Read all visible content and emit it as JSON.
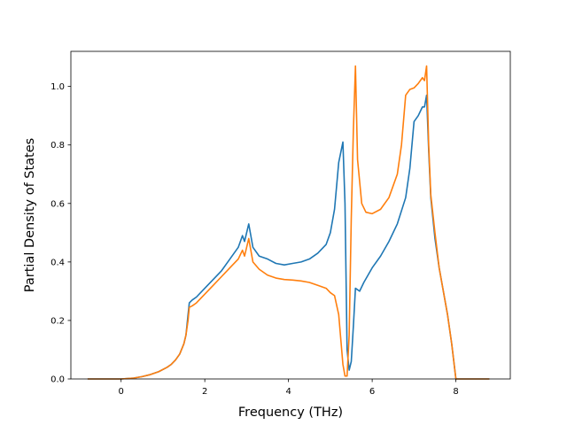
{
  "chart_data": {
    "type": "line",
    "title": "",
    "xlabel": "Frequency (THz)",
    "ylabel": "Partial Density of States",
    "xlim": [
      -1.2,
      9.3
    ],
    "ylim": [
      0.0,
      1.12
    ],
    "xticks": [
      0,
      2,
      4,
      6,
      8
    ],
    "yticks": [
      0.0,
      0.2,
      0.4,
      0.6,
      0.8,
      1.0
    ],
    "xtick_labels": [
      "0",
      "2",
      "4",
      "6",
      "8"
    ],
    "ytick_labels": [
      "0.0",
      "0.2",
      "0.4",
      "0.6",
      "0.8",
      "1.0"
    ],
    "grid": false,
    "legend": "none",
    "series": [
      {
        "color": "#1f77b4",
        "points": [
          [
            -0.8,
            0.0
          ],
          [
            0.0,
            0.0
          ],
          [
            0.3,
            0.003
          ],
          [
            0.5,
            0.008
          ],
          [
            0.7,
            0.015
          ],
          [
            0.9,
            0.025
          ],
          [
            1.1,
            0.04
          ],
          [
            1.2,
            0.05
          ],
          [
            1.3,
            0.065
          ],
          [
            1.4,
            0.085
          ],
          [
            1.5,
            0.12
          ],
          [
            1.55,
            0.15
          ],
          [
            1.6,
            0.22
          ],
          [
            1.63,
            0.26
          ],
          [
            1.7,
            0.27
          ],
          [
            1.8,
            0.28
          ],
          [
            2.0,
            0.31
          ],
          [
            2.2,
            0.34
          ],
          [
            2.4,
            0.37
          ],
          [
            2.6,
            0.41
          ],
          [
            2.8,
            0.45
          ],
          [
            2.9,
            0.49
          ],
          [
            2.95,
            0.47
          ],
          [
            3.05,
            0.53
          ],
          [
            3.15,
            0.45
          ],
          [
            3.3,
            0.42
          ],
          [
            3.5,
            0.41
          ],
          [
            3.7,
            0.395
          ],
          [
            3.9,
            0.39
          ],
          [
            4.1,
            0.395
          ],
          [
            4.3,
            0.4
          ],
          [
            4.5,
            0.41
          ],
          [
            4.7,
            0.43
          ],
          [
            4.9,
            0.46
          ],
          [
            5.0,
            0.5
          ],
          [
            5.1,
            0.58
          ],
          [
            5.2,
            0.74
          ],
          [
            5.3,
            0.81
          ],
          [
            5.35,
            0.6
          ],
          [
            5.4,
            0.1
          ],
          [
            5.45,
            0.03
          ],
          [
            5.5,
            0.06
          ],
          [
            5.55,
            0.18
          ],
          [
            5.6,
            0.31
          ],
          [
            5.7,
            0.3
          ],
          [
            5.8,
            0.33
          ],
          [
            6.0,
            0.38
          ],
          [
            6.2,
            0.42
          ],
          [
            6.4,
            0.47
          ],
          [
            6.6,
            0.53
          ],
          [
            6.8,
            0.62
          ],
          [
            6.9,
            0.72
          ],
          [
            7.0,
            0.88
          ],
          [
            7.1,
            0.9
          ],
          [
            7.2,
            0.93
          ],
          [
            7.25,
            0.93
          ],
          [
            7.3,
            0.97
          ],
          [
            7.35,
            0.78
          ],
          [
            7.4,
            0.62
          ],
          [
            7.5,
            0.48
          ],
          [
            7.6,
            0.38
          ],
          [
            7.7,
            0.3
          ],
          [
            7.8,
            0.22
          ],
          [
            7.9,
            0.12
          ],
          [
            8.0,
            0.0
          ],
          [
            8.8,
            0.0
          ]
        ]
      },
      {
        "color": "#ff7f0e",
        "points": [
          [
            -0.8,
            0.0
          ],
          [
            0.0,
            0.0
          ],
          [
            0.3,
            0.003
          ],
          [
            0.5,
            0.008
          ],
          [
            0.7,
            0.015
          ],
          [
            0.9,
            0.025
          ],
          [
            1.1,
            0.04
          ],
          [
            1.2,
            0.05
          ],
          [
            1.3,
            0.065
          ],
          [
            1.4,
            0.085
          ],
          [
            1.5,
            0.12
          ],
          [
            1.55,
            0.15
          ],
          [
            1.6,
            0.2
          ],
          [
            1.63,
            0.245
          ],
          [
            1.7,
            0.25
          ],
          [
            1.8,
            0.26
          ],
          [
            2.0,
            0.29
          ],
          [
            2.2,
            0.32
          ],
          [
            2.4,
            0.35
          ],
          [
            2.6,
            0.38
          ],
          [
            2.8,
            0.41
          ],
          [
            2.9,
            0.44
          ],
          [
            2.95,
            0.42
          ],
          [
            3.05,
            0.48
          ],
          [
            3.15,
            0.4
          ],
          [
            3.3,
            0.375
          ],
          [
            3.5,
            0.355
          ],
          [
            3.7,
            0.345
          ],
          [
            3.9,
            0.34
          ],
          [
            4.1,
            0.338
          ],
          [
            4.3,
            0.335
          ],
          [
            4.5,
            0.33
          ],
          [
            4.7,
            0.32
          ],
          [
            4.9,
            0.31
          ],
          [
            5.0,
            0.295
          ],
          [
            5.1,
            0.285
          ],
          [
            5.2,
            0.22
          ],
          [
            5.3,
            0.05
          ],
          [
            5.35,
            0.01
          ],
          [
            5.4,
            0.01
          ],
          [
            5.45,
            0.15
          ],
          [
            5.5,
            0.55
          ],
          [
            5.55,
            0.85
          ],
          [
            5.6,
            1.07
          ],
          [
            5.65,
            0.75
          ],
          [
            5.75,
            0.6
          ],
          [
            5.85,
            0.57
          ],
          [
            6.0,
            0.565
          ],
          [
            6.2,
            0.58
          ],
          [
            6.4,
            0.62
          ],
          [
            6.6,
            0.7
          ],
          [
            6.7,
            0.8
          ],
          [
            6.8,
            0.97
          ],
          [
            6.9,
            0.99
          ],
          [
            7.0,
            0.995
          ],
          [
            7.1,
            1.01
          ],
          [
            7.2,
            1.03
          ],
          [
            7.25,
            1.02
          ],
          [
            7.3,
            1.07
          ],
          [
            7.35,
            0.8
          ],
          [
            7.4,
            0.63
          ],
          [
            7.5,
            0.5
          ],
          [
            7.6,
            0.38
          ],
          [
            7.7,
            0.3
          ],
          [
            7.8,
            0.22
          ],
          [
            7.9,
            0.12
          ],
          [
            8.0,
            0.0
          ],
          [
            8.8,
            0.0
          ]
        ]
      }
    ]
  }
}
